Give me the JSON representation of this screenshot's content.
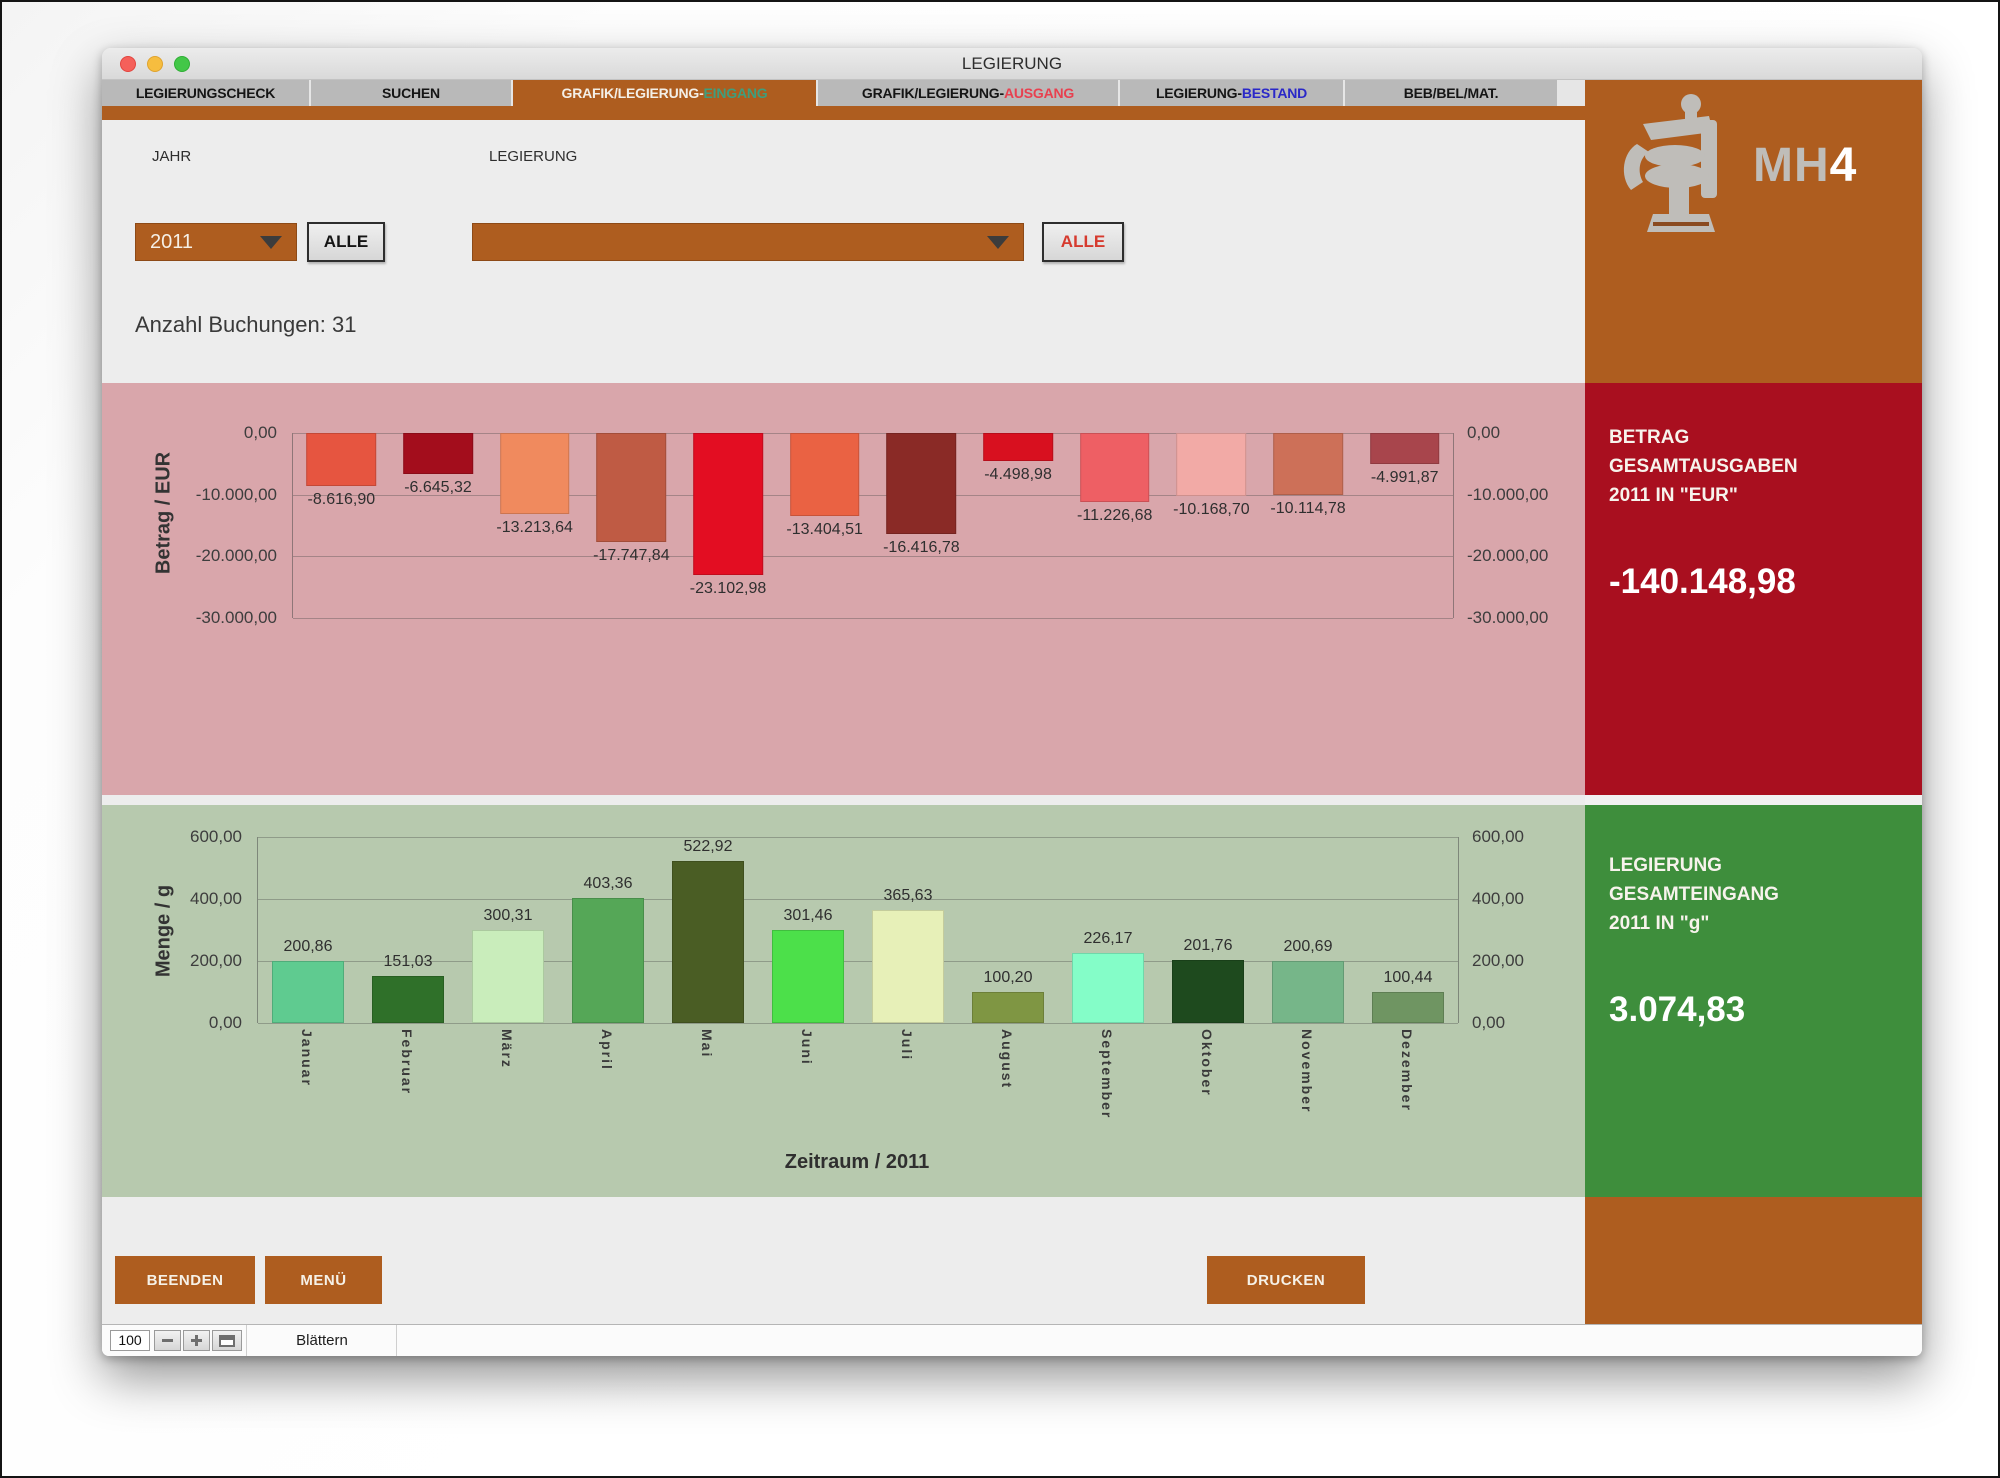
{
  "window_title": "LEGIERUNG",
  "tabs": [
    {
      "prefix": "LEGIERUNGSCHECK",
      "suffix": "",
      "active": false
    },
    {
      "prefix": "SUCHEN",
      "suffix": "",
      "active": false
    },
    {
      "prefix": "GRAFIK/LEGIERUNG-",
      "suffix": "EINGANG",
      "suffix_color": "#3f9e7d",
      "active": true
    },
    {
      "prefix": "GRAFIK/LEGIERUNG-",
      "suffix": "AUSGANG",
      "suffix_color": "#e8404f",
      "active": false
    },
    {
      "prefix": "LEGIERUNG-",
      "suffix": "BESTAND",
      "suffix_color": "#2a28c8",
      "active": false
    },
    {
      "prefix": "BEB/BEL/MAT.",
      "suffix": "",
      "active": false
    }
  ],
  "filters": {
    "jahr_label": "JAHR",
    "jahr_value": "2011",
    "jahr_alle": "ALLE",
    "legierung_label": "LEGIERUNG",
    "legierung_value": "",
    "legierung_alle": "ALLE"
  },
  "bookings_label": "Anzahl Buchungen:",
  "bookings_count": "31",
  "logo": {
    "mh": "MH",
    "four": "4"
  },
  "colors": {
    "accent_brown": "#ae5d1f",
    "panel_red": "#a90f1f",
    "panel_green": "#3e8e3c",
    "band_pink": "#d9a6ab",
    "band_green": "#b7c9ae"
  },
  "chart_data": [
    {
      "type": "bar",
      "title": "",
      "ylabel": "Betrag / EUR",
      "xlabel": "",
      "categories": [
        "Januar",
        "Februar",
        "März",
        "April",
        "Mai",
        "Juni",
        "Juli",
        "August",
        "September",
        "Oktober",
        "November",
        "Dezember"
      ],
      "values": [
        -8616.9,
        -6645.32,
        -13213.64,
        -17747.84,
        -23102.98,
        -13404.51,
        -16416.78,
        -4498.98,
        -11226.68,
        -10168.7,
        -10114.78,
        -4991.87
      ],
      "labels": [
        "-8.616,90",
        "-6.645,32",
        "-13.213,64",
        "-17.747,84",
        "-23.102,98",
        "-13.404,51",
        "-16.416,78",
        "-4.498,98",
        "-11.226,68",
        "-10.168,70",
        "-10.114,78",
        "-4.991,87"
      ],
      "bar_colors": [
        "#e65540",
        "#a30d1c",
        "#f08a5e",
        "#bf5b44",
        "#e30d22",
        "#ea6243",
        "#8a2a26",
        "#d8101f",
        "#ee5f64",
        "#f2aaa6",
        "#cd7058",
        "#a8454c"
      ],
      "ylim": [
        -30000,
        0
      ],
      "yticks": [
        0,
        -10000,
        -20000,
        -30000
      ],
      "ytick_labels": [
        "0,00",
        "-10.000,00",
        "-20.000,00",
        "-30.000,00"
      ],
      "legend": "none",
      "grid": true,
      "axis_labels_both_sides": true
    },
    {
      "type": "bar",
      "title": "",
      "ylabel": "Menge / g",
      "xlabel": "Zeitraum / 2011",
      "categories": [
        "Januar",
        "Februar",
        "März",
        "April",
        "Mai",
        "Juni",
        "Juli",
        "August",
        "September",
        "Oktober",
        "November",
        "Dezember"
      ],
      "values": [
        200.86,
        151.03,
        300.31,
        403.36,
        522.92,
        301.46,
        365.63,
        100.2,
        226.17,
        201.76,
        200.69,
        100.44
      ],
      "labels": [
        "200,86",
        "151,03",
        "300,31",
        "403,36",
        "522,92",
        "301,46",
        "365,63",
        "100,20",
        "226,17",
        "201,76",
        "200,69",
        "100,44"
      ],
      "bar_colors": [
        "#5fcb90",
        "#2f7029",
        "#c9edbb",
        "#55a757",
        "#4a5d24",
        "#4ce04a",
        "#e7f0b8",
        "#7f9643",
        "#84fdc8",
        "#1e4a1e",
        "#76b689",
        "#6f9562"
      ],
      "ylim": [
        0,
        600
      ],
      "yticks": [
        600,
        400,
        200,
        0
      ],
      "ytick_labels": [
        "600,00",
        "400,00",
        "200,00",
        "0,00"
      ],
      "legend": "none",
      "grid": true,
      "axis_labels_both_sides": true
    }
  ],
  "panels": {
    "eur": {
      "line1": "BETRAG",
      "line2": "GESAMTAUSGABEN",
      "line3": "2011 IN \"EUR\"",
      "total": "-140.148,98"
    },
    "g": {
      "line1": "LEGIERUNG",
      "line2": "GESAMTEINGANG",
      "line3": "2011 IN \"g\"",
      "total": "3.074,83"
    }
  },
  "footer": {
    "beenden": "BEENDEN",
    "menue": "MENÜ",
    "drucken": "DRUCKEN"
  },
  "statusbar": {
    "zoom": "100",
    "blaettern": "Blättern"
  }
}
